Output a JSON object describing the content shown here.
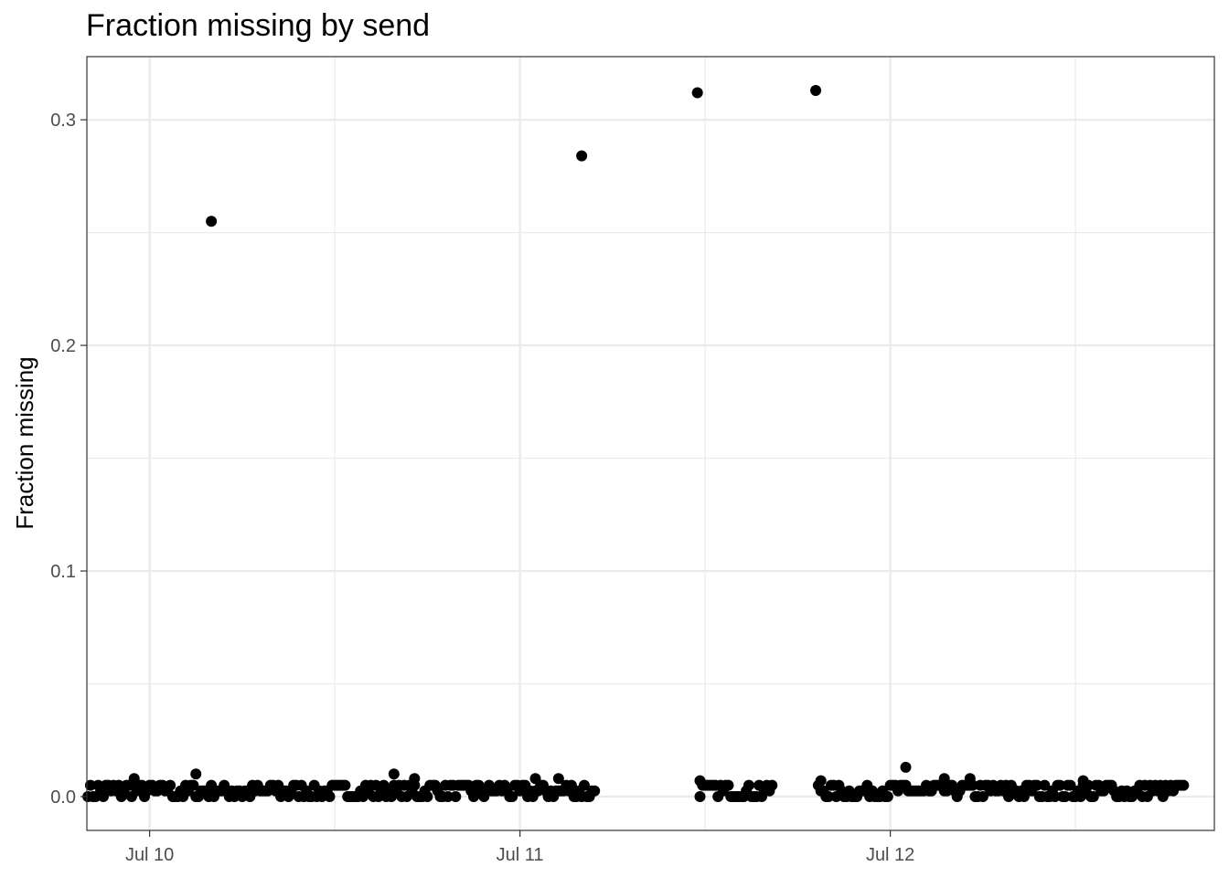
{
  "chart_data": {
    "type": "scatter",
    "title": "Fraction missing by send",
    "xlabel": "",
    "ylabel": "Fraction missing",
    "x_axis": {
      "type": "datetime",
      "range": [
        "2021-07-09T19:56",
        "2021-07-12T21:00"
      ],
      "ticks": [
        {
          "value": "2021-07-10T00:00",
          "label": "Jul 10"
        },
        {
          "value": "2021-07-11T00:00",
          "label": "Jul 11"
        },
        {
          "value": "2021-07-12T00:00",
          "label": "Jul 12"
        }
      ],
      "minor_gridlines": [
        "2021-07-10T12:00",
        "2021-07-11T12:00",
        "2021-07-12T12:00"
      ]
    },
    "y_axis": {
      "range": [
        -0.015,
        0.328
      ],
      "ticks": [
        {
          "value": 0.0,
          "label": "0.0"
        },
        {
          "value": 0.1,
          "label": "0.1"
        },
        {
          "value": 0.2,
          "label": "0.2"
        },
        {
          "value": 0.3,
          "label": "0.3"
        }
      ],
      "minor_gridlines": [
        0.05,
        0.15,
        0.25
      ]
    },
    "grid": true,
    "legend": "none",
    "point_color": "#000000",
    "outliers": [
      {
        "x": "2021-07-10T04:00",
        "y": 0.255
      },
      {
        "x": "2021-07-11T04:00",
        "y": 0.284
      },
      {
        "x": "2021-07-11T11:30",
        "y": 0.312
      },
      {
        "x": "2021-07-11T19:10",
        "y": 0.313
      }
    ],
    "notable_points": [
      {
        "x": "2021-07-09T23:00",
        "y": 0.008
      },
      {
        "x": "2021-07-10T03:00",
        "y": 0.01
      },
      {
        "x": "2021-07-10T15:50",
        "y": 0.01
      },
      {
        "x": "2021-07-10T17:10",
        "y": 0.008
      },
      {
        "x": "2021-07-11T01:00",
        "y": 0.008
      },
      {
        "x": "2021-07-11T02:30",
        "y": 0.008
      },
      {
        "x": "2021-07-11T11:40",
        "y": 0.007
      },
      {
        "x": "2021-07-11T19:30",
        "y": 0.007
      },
      {
        "x": "2021-07-12T01:00",
        "y": 0.013
      },
      {
        "x": "2021-07-12T03:30",
        "y": 0.008
      },
      {
        "x": "2021-07-12T05:10",
        "y": 0.008
      },
      {
        "x": "2021-07-12T12:30",
        "y": 0.007
      }
    ],
    "baseline_runs": [
      {
        "start": "2021-07-09T20:00",
        "end": "2021-07-11T04:50",
        "interval_minutes": 10,
        "values": [
          0,
          0.0025,
          0.005
        ]
      },
      {
        "start": "2021-07-11T11:40",
        "end": "2021-07-11T16:20",
        "interval_minutes": 10,
        "values": [
          0,
          0.0025,
          0.005
        ]
      },
      {
        "start": "2021-07-11T19:20",
        "end": "2021-07-12T19:00",
        "interval_minutes": 10,
        "values": [
          0,
          0.0025,
          0.005
        ]
      }
    ]
  }
}
